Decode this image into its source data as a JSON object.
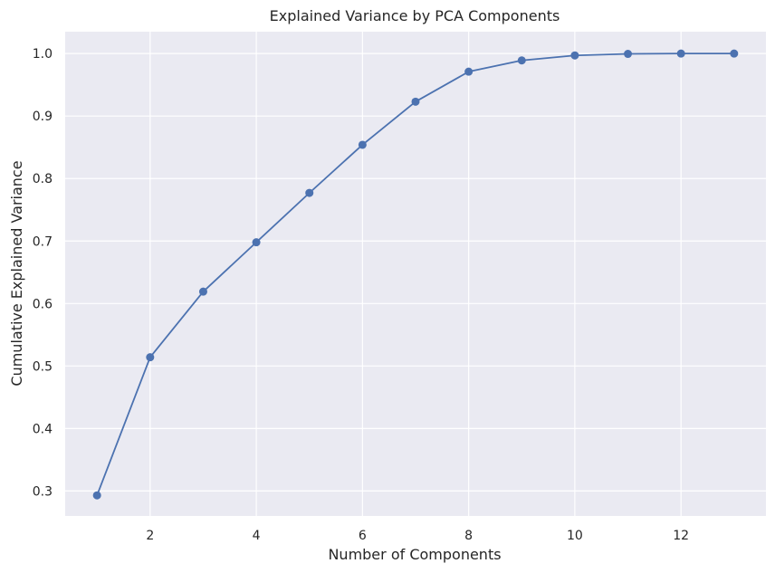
{
  "chart_data": {
    "type": "line",
    "title": "Explained Variance by PCA Components",
    "xlabel": "Number of Components",
    "ylabel": "Cumulative Explained Variance",
    "xlim": [
      0.4,
      13.6
    ],
    "ylim": [
      0.26,
      1.035
    ],
    "x_ticks": [
      2,
      4,
      6,
      8,
      10,
      12
    ],
    "y_ticks": [
      0.3,
      0.4,
      0.5,
      0.6,
      0.7,
      0.8,
      0.9,
      1.0
    ],
    "x_tick_labels": [
      "2",
      "4",
      "6",
      "8",
      "10",
      "12"
    ],
    "y_tick_labels": [
      "0.3",
      "0.4",
      "0.5",
      "0.6",
      "0.7",
      "0.8",
      "0.9",
      "1.0"
    ],
    "grid": true,
    "background_color": "#eaeaf2",
    "grid_color": "#ffffff",
    "series": [
      {
        "color": "#4c72b0",
        "marker": "circle",
        "x": [
          1,
          2,
          3,
          4,
          5,
          6,
          7,
          8,
          9,
          10,
          11,
          12,
          13
        ],
        "y": [
          0.293,
          0.514,
          0.619,
          0.698,
          0.777,
          0.854,
          0.923,
          0.971,
          0.989,
          0.997,
          0.9995,
          1.0,
          1.0
        ]
      }
    ]
  }
}
